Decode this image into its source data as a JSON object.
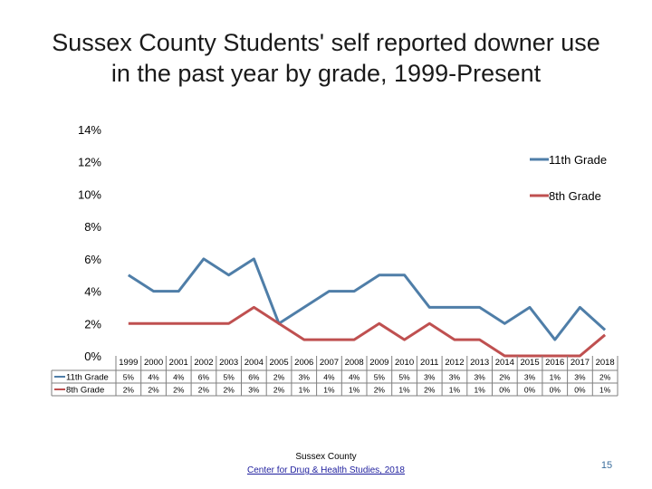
{
  "title_line1": "Sussex County Students' self reported downer use",
  "title_line2": "in the past year by grade, 1999-Present",
  "footer_line1": "Sussex County",
  "footer_link": "Center for Drug & Health Studies, 2018",
  "page_number": "15",
  "chart_data": {
    "type": "line",
    "categories": [
      "1999",
      "2000",
      "2001",
      "2002",
      "2003",
      "2004",
      "2005",
      "2006",
      "2007",
      "2008",
      "2009",
      "2010",
      "2011",
      "2012",
      "2013",
      "2014",
      "2015",
      "2016",
      "2017",
      "2018"
    ],
    "ylim": [
      0,
      14
    ],
    "yticks": [
      "0%",
      "2%",
      "4%",
      "6%",
      "8%",
      "10%",
      "12%",
      "14%"
    ],
    "legend_position": "right",
    "grid": false,
    "series": [
      {
        "name": "11th Grade",
        "color": "#4f7ea8",
        "values": [
          5,
          4,
          4,
          6,
          5,
          6,
          2,
          3,
          4,
          4,
          5,
          5,
          3,
          3,
          3,
          2,
          3,
          1,
          3,
          1.6
        ],
        "labels": [
          "5%",
          "4%",
          "4%",
          "6%",
          "5%",
          "6%",
          "2%",
          "3%",
          "4%",
          "4%",
          "5%",
          "5%",
          "3%",
          "3%",
          "3%",
          "2%",
          "3%",
          "1%",
          "3%",
          "2%"
        ]
      },
      {
        "name": "8th Grade",
        "color": "#bf5050",
        "values": [
          2,
          2,
          2,
          2,
          2,
          3,
          2,
          1,
          1,
          1,
          2,
          1,
          2,
          1,
          1,
          0,
          0,
          0,
          0,
          1.3
        ],
        "labels": [
          "2%",
          "2%",
          "2%",
          "2%",
          "2%",
          "3%",
          "2%",
          "1%",
          "1%",
          "1%",
          "2%",
          "1%",
          "2%",
          "1%",
          "1%",
          "0%",
          "0%",
          "0%",
          "0%",
          "1%"
        ]
      }
    ]
  }
}
